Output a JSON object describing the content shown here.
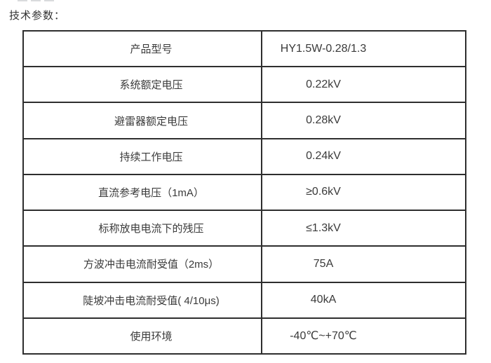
{
  "page": {
    "title": "技术参数："
  },
  "table": {
    "columns": [
      "parameter",
      "value"
    ],
    "border_color": "#2e2e2e",
    "text_color": "#3a3a3a",
    "rows": [
      {
        "label": "产品型号",
        "value": "HY1.5W-0.28/1.3"
      },
      {
        "label": "系统额定电压",
        "value": "0.22kV"
      },
      {
        "label": "避雷器额定电压",
        "value": "0.28kV"
      },
      {
        "label": "持续工作电压",
        "value": "0.24kV"
      },
      {
        "label": "直流参考电压（1mA）",
        "value": "≥0.6kV"
      },
      {
        "label": "标称放电电流下的残压",
        "value": "≤1.3kV"
      },
      {
        "label": "方波冲击电流耐受值（2ms）",
        "value": "75A"
      },
      {
        "label": "陡坡冲击电流耐受值( 4/10μs)",
        "value": "40kA"
      },
      {
        "label": "使用环境",
        "value": "-40℃~+70℃"
      }
    ]
  }
}
